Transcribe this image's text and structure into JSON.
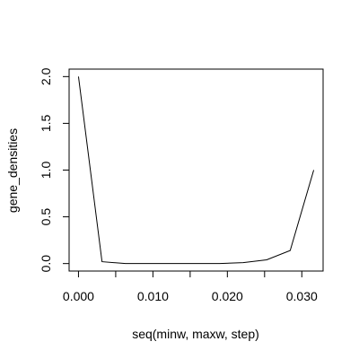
{
  "chart_data": {
    "type": "line",
    "x": [
      0.0,
      0.00316,
      0.00632,
      0.00948,
      0.01264,
      0.0158,
      0.01896,
      0.02212,
      0.02528,
      0.02844,
      0.0316
    ],
    "series": [
      {
        "values": [
          2.0,
          0.02,
          0.0,
          0.0,
          0.0,
          0.0,
          0.0,
          0.01,
          0.04,
          0.14,
          1.0
        ]
      }
    ],
    "xlabel": "seq(minw, maxw, step)",
    "ylabel": "gene_densities",
    "xlim": [
      -0.00126,
      0.03286
    ],
    "ylim": [
      -0.08,
      2.08
    ],
    "x_ticks": [
      0.0,
      0.01,
      0.02,
      0.03
    ],
    "x_tick_labels": [
      "0.000",
      "0.010",
      "0.020",
      "0.030"
    ],
    "y_ticks": [
      0.0,
      0.5,
      1.0,
      1.5,
      2.0
    ],
    "y_tick_labels": [
      "0.0",
      "0.5",
      "1.0",
      "1.5",
      "2.0"
    ],
    "line_color": "#000000",
    "grid": false,
    "legend": false
  }
}
